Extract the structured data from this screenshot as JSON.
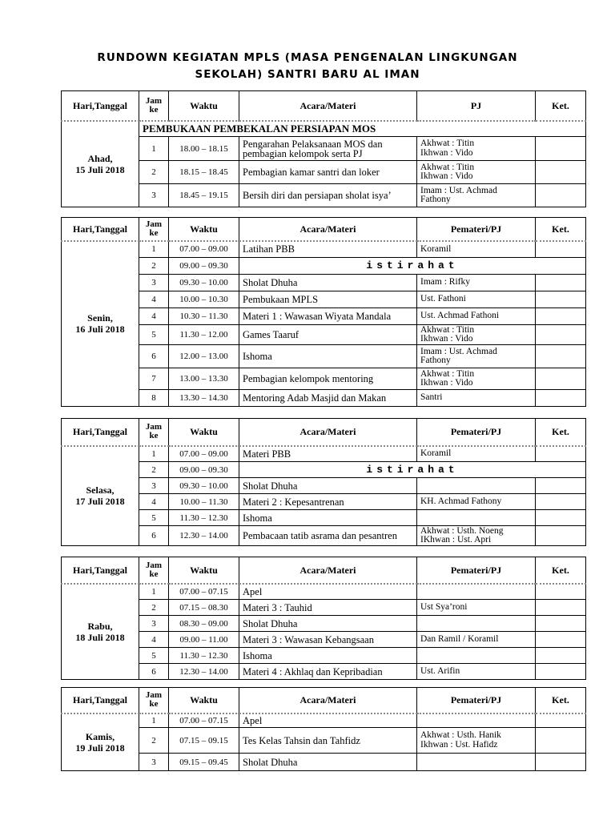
{
  "title": {
    "line1": "RUNDOWN KEGIATAN MPLS (MASA PENGENALAN LINGKUNGAN",
    "line2": "SEKOLAH) SANTRI BARU AL IMAN"
  },
  "headers": {
    "hari": "Hari,Tanggal",
    "jam1": "Jam",
    "jam2": "ke",
    "waktu": "Waktu",
    "acara": "Acara/Materi",
    "pj_first": "PJ",
    "pj": "Pemateri/PJ",
    "ket": "Ket."
  },
  "days": [
    {
      "day": "Ahad,",
      "date": "15 Juli 2018",
      "pj_header": "PJ",
      "section": "PEMBUKAAN PEMBEKALAN PERSIAPAN MOS",
      "rows": [
        {
          "jam": "1",
          "waktu": "18.00 – 18.15",
          "acara": "Pengarahan Pelaksanaan MOS dan pembagian kelompok serta PJ",
          "pj": [
            "Akhwat : Titin",
            "Ikhwan : Vido"
          ],
          "ket": ""
        },
        {
          "jam": "2",
          "waktu": "18.15 – 18.45",
          "acara": "Pembagian kamar santri dan loker",
          "pj": [
            "Akhwat : Titin",
            "Ikhwan : Vido"
          ],
          "ket": ""
        },
        {
          "jam": "3",
          "waktu": "18.45 – 19.15",
          "acara": "Bersih diri dan persiapan sholat isya’",
          "pj": [
            "Imam : Ust. Achmad",
            "Fathony"
          ],
          "ket": ""
        }
      ]
    },
    {
      "day": "Senin,",
      "date": "16 Juli 2018",
      "pj_header": "Pemateri/PJ",
      "rows": [
        {
          "jam": "1",
          "waktu": "07.00 – 09.00",
          "acara": "Latihan PBB",
          "pj": [
            "Koramil"
          ],
          "ket": ""
        },
        {
          "jam": "2",
          "waktu": "09.00 – 09.30",
          "break": "istirahat"
        },
        {
          "jam": "3",
          "waktu": "09.30 – 10.00",
          "acara": "Sholat Dhuha",
          "pj": [
            "Imam : Rifky"
          ],
          "ket": ""
        },
        {
          "jam": "4",
          "waktu": "10.00 – 10.30",
          "acara": "Pembukaan MPLS",
          "pj": [
            "Ust. Fathoni"
          ],
          "ket": ""
        },
        {
          "jam": "4",
          "waktu": "10.30 – 11.30",
          "acara": "Materi 1 : Wawasan Wiyata Mandala",
          "pj": [
            "Ust. Achmad Fathoni"
          ],
          "ket": ""
        },
        {
          "jam": "5",
          "waktu": "11.30 – 12.00",
          "acara": "Games Taaruf",
          "pj": [
            "Akhwat : Titin",
            "Ikhwan : Vido"
          ],
          "ket": ""
        },
        {
          "jam": "6",
          "waktu": "12.00 – 13.00",
          "acara": "Ishoma",
          "pj": [
            "Imam : Ust. Achmad",
            "Fathony"
          ],
          "ket": ""
        },
        {
          "jam": "7",
          "waktu": "13.00 – 13.30",
          "acara": "Pembagian kelompok mentoring",
          "pj": [
            "Akhwat : Titin",
            "Ikhwan : Vido"
          ],
          "ket": ""
        },
        {
          "jam": "8",
          "waktu": "13.30 – 14.30",
          "acara": "Mentoring Adab Masjid dan Makan",
          "pj": [
            "Santri"
          ],
          "ket": ""
        }
      ]
    },
    {
      "day": "Selasa,",
      "date": "17 Juli 2018",
      "pj_header": "Pemateri/PJ",
      "rows": [
        {
          "jam": "1",
          "waktu": "07.00 – 09.00",
          "acara": "Materi PBB",
          "pj": [
            "Koramil"
          ],
          "ket": ""
        },
        {
          "jam": "2",
          "waktu": "09.00 – 09.30",
          "break": "istirahat"
        },
        {
          "jam": "3",
          "waktu": "09.30 – 10.00",
          "acara": "Sholat Dhuha",
          "pj": [],
          "ket": ""
        },
        {
          "jam": "4",
          "waktu": "10.00 – 11.30",
          "acara": "Materi 2 : Kepesantrenan",
          "pj": [
            "KH. Achmad Fathony"
          ],
          "ket": ""
        },
        {
          "jam": "5",
          "waktu": "11.30 – 12.30",
          "acara": "Ishoma",
          "pj": [],
          "ket": ""
        },
        {
          "jam": "6",
          "waktu": "12.30 – 14.00",
          "acara": "Pembacaan tatib asrama dan pesantren",
          "pj": [
            "Akhwat : Usth. Noeng",
            "IKhwan : Ust. Apri"
          ],
          "ket": ""
        }
      ]
    },
    {
      "day": "Rabu,",
      "date": "18 Juli 2018",
      "pj_header": "Pemateri/PJ",
      "rows": [
        {
          "jam": "1",
          "waktu": "07.00 – 07.15",
          "acara": "Apel",
          "pj": [],
          "ket": ""
        },
        {
          "jam": "2",
          "waktu": "07.15 – 08.30",
          "acara": "Materi 3 : Tauhid",
          "pj": [
            "Ust Sya’roni"
          ],
          "ket": ""
        },
        {
          "jam": "3",
          "waktu": "08.30 – 09.00",
          "acara": "Sholat Dhuha",
          "pj": [],
          "ket": ""
        },
        {
          "jam": "4",
          "waktu": "09.00 – 11.00",
          "acara": "Materi 3 : Wawasan Kebangsaan",
          "pj": [
            "Dan Ramil / Koramil"
          ],
          "ket": ""
        },
        {
          "jam": "5",
          "waktu": "11.30 – 12.30",
          "acara": "Ishoma",
          "pj": [],
          "ket": ""
        },
        {
          "jam": "6",
          "waktu": "12.30 – 14.00",
          "acara": "Materi 4 : Akhlaq dan Kepribadian",
          "pj": [
            "Ust. Arifin"
          ],
          "ket": ""
        }
      ]
    },
    {
      "day": "Kamis,",
      "date": "19 Juli 2018",
      "pj_header": "Pemateri/PJ",
      "rows": [
        {
          "jam": "1",
          "waktu": "07.00 – 07.15",
          "acara": "Apel",
          "pj": [],
          "ket": ""
        },
        {
          "jam": "2",
          "waktu": "07.15 – 09.15",
          "acara": "Tes Kelas Tahsin dan Tahfidz",
          "pj": [
            "Akhwat : Usth. Hanik",
            "Ikhwan : Ust. Hafidz"
          ],
          "ket": ""
        },
        {
          "jam": "3",
          "waktu": "09.15 – 09.45",
          "acara": "Sholat Dhuha",
          "pj": [],
          "ket": ""
        }
      ]
    }
  ]
}
